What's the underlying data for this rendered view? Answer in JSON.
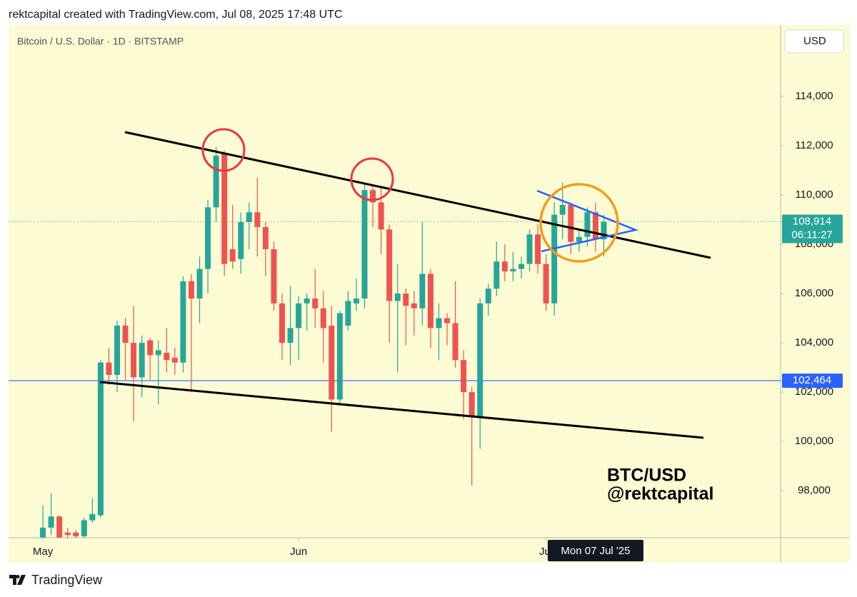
{
  "header": "rektcapital created with TradingView.com, Jul 08, 2025 17:48 UTC",
  "footer": "TradingView",
  "chart_data": {
    "type": "candlestick",
    "title": "Bitcoin / U.S. Dollar · 1D · BITSTAMP",
    "currency": "USD",
    "up_color": "#26a69a",
    "down_color": "#ef5350",
    "open": [
      96100,
      96500,
      96950,
      96300,
      96300,
      96150,
      96800,
      97000,
      103200,
      102700,
      104700,
      104000,
      102600,
      104100,
      103500,
      103600,
      103400,
      103200,
      106500,
      105800,
      107000,
      109500,
      111700,
      107800,
      107400,
      108900,
      109300,
      108700,
      107800,
      105600,
      104000,
      104600,
      105600,
      105800,
      105400,
      104700,
      101700,
      104700,
      105600,
      105800,
      110200,
      109700,
      108600,
      105700,
      106000,
      105600,
      105400,
      106800,
      104600,
      105000,
      104800,
      103300,
      102000,
      101000,
      105600,
      106200,
      107300,
      106900,
      107000,
      107200,
      108400,
      107200,
      105600,
      109200,
      109600,
      108100,
      108300,
      109300,
      108200
    ],
    "high": [
      97400,
      97900,
      97000,
      96500,
      96400,
      96900,
      97700,
      103300,
      103800,
      104900,
      105000,
      105500,
      104300,
      104200,
      104100,
      104600,
      103800,
      106700,
      106800,
      107500,
      109800,
      111950,
      111800,
      109600,
      109300,
      109700,
      110700,
      108900,
      108100,
      106000,
      106300,
      105900,
      106000,
      107000,
      106100,
      105500,
      105300,
      106100,
      106600,
      110500,
      110400,
      110300,
      108800,
      107200,
      106200,
      106100,
      108900,
      107000,
      105600,
      105200,
      106500,
      103700,
      102200,
      105800,
      106400,
      108100,
      108000,
      107700,
      107500,
      108600,
      108800,
      107600,
      109700,
      110500,
      109700,
      108600,
      109500,
      109700,
      109200
    ],
    "low": [
      96100,
      96200,
      96090,
      96090,
      96090,
      96100,
      96700,
      96900,
      102300,
      102000,
      102500,
      100800,
      101800,
      102500,
      101500,
      102800,
      102700,
      102800,
      102000,
      104800,
      106000,
      108900,
      106700,
      107000,
      106800,
      107800,
      107500,
      106700,
      105300,
      103300,
      103100,
      103300,
      104500,
      104600,
      103200,
      100400,
      101500,
      104500,
      105300,
      105400,
      108700,
      107600,
      104000,
      102800,
      103900,
      104300,
      104700,
      103800,
      103300,
      103900,
      103000,
      100900,
      98200,
      99700,
      105100,
      105900,
      106500,
      106500,
      106600,
      106900,
      106800,
      105300,
      105100,
      108200,
      107600,
      107700,
      107900,
      107700,
      107500
    ],
    "close": [
      96500,
      96950,
      96100,
      96200,
      96150,
      96800,
      97050,
      103200,
      102700,
      104700,
      104000,
      102600,
      104000,
      103500,
      103700,
      103300,
      103200,
      106500,
      105800,
      107000,
      109500,
      111600,
      107200,
      107300,
      108900,
      109300,
      108700,
      107800,
      105600,
      104000,
      104600,
      105600,
      105800,
      105400,
      104600,
      101700,
      105200,
      105700,
      105800,
      110200,
      109700,
      108600,
      105700,
      106000,
      105500,
      105400,
      106800,
      104600,
      105000,
      104800,
      103300,
      102000,
      101000,
      105600,
      106200,
      107300,
      106900,
      107000,
      107200,
      108400,
      107200,
      105600,
      109200,
      109600,
      108100,
      108300,
      109300,
      108200,
      108914
    ],
    "ylim": [
      96090,
      116900
    ],
    "yticks": [
      {
        "value": 98000,
        "label": "98,000"
      },
      {
        "value": 100000,
        "label": "100,000"
      },
      {
        "value": 102000,
        "label": "102,000"
      },
      {
        "value": 104000,
        "label": "104,000"
      },
      {
        "value": 106000,
        "label": "106,000"
      },
      {
        "value": 108000,
        "label": "108,000"
      },
      {
        "value": 110000,
        "label": "110,000"
      },
      {
        "value": 112000,
        "label": "112,000"
      },
      {
        "value": 114000,
        "label": "114,000"
      }
    ],
    "xlim": [
      -4.16,
      89.43
    ],
    "xticks": [
      {
        "value": 0,
        "label": "May"
      },
      {
        "value": 31,
        "label": "Jun"
      },
      {
        "value": 61,
        "label": "Jul"
      }
    ],
    "price_lines": [
      {
        "value": 108914,
        "label": "108,914",
        "countdown": "06:11:27",
        "color": "#26a69a"
      },
      {
        "value": 102464,
        "label": "102,464",
        "color": "#2962ff"
      }
    ],
    "crosshair": {
      "value": 67,
      "label": "Mon 07 Jul '25"
    },
    "watermark": [
      "BTC/USD",
      "@rektcapital"
    ]
  }
}
